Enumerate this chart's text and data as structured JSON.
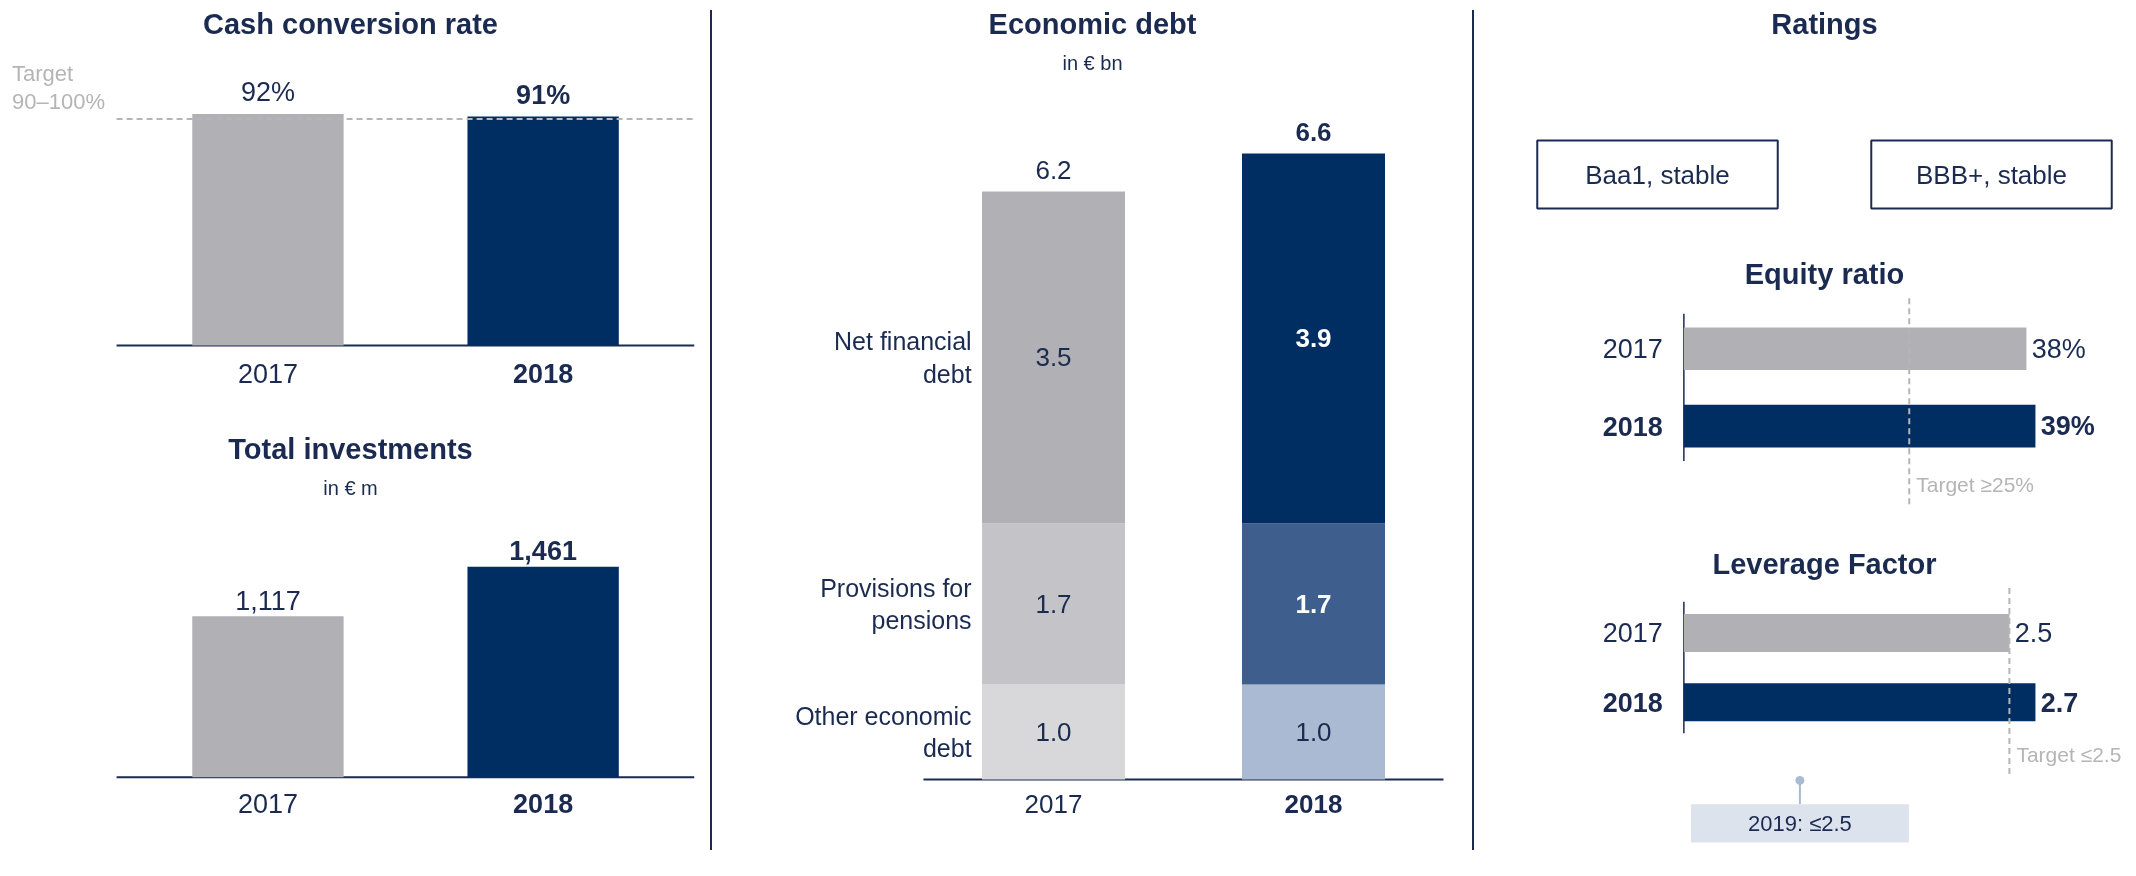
{
  "chart_data": [
    {
      "type": "bar",
      "title": "Cash conversion rate",
      "categories": [
        "2017",
        "2018"
      ],
      "values": [
        92,
        91
      ],
      "colors": [
        "#b1b0b5",
        "#002d62"
      ],
      "value_labels": [
        "92%",
        "91%"
      ],
      "ref_lines": [
        {
          "axis": "y",
          "value": 90,
          "label": "Target 90–100%",
          "color": "#b5b5b5",
          "line_style": "dashed"
        }
      ]
    },
    {
      "type": "bar",
      "title": "Total investments",
      "subtitle": "in € m",
      "categories": [
        "2017",
        "2018"
      ],
      "values": [
        1117,
        1461
      ],
      "colors": [
        "#b1b0b5",
        "#002d62"
      ],
      "value_labels": [
        "1,117",
        "1,461"
      ]
    },
    {
      "type": "bar",
      "title": "Economic debt",
      "subtitle": "in € bn",
      "categories": [
        "2017",
        "2018"
      ],
      "stacked": true,
      "totals": [
        "6.2",
        "6.6"
      ],
      "series": [
        {
          "name": "Other economic debt",
          "colors": [
            "#d8d8da",
            "#aabad3"
          ],
          "values": [
            1.0,
            1.0
          ],
          "value_labels": [
            "1.0",
            "1.0"
          ]
        },
        {
          "name": "Provisions for pensions",
          "colors": [
            "#c4c3c8",
            "#3e5e8e"
          ],
          "values": [
            1.7,
            1.7
          ],
          "value_labels": [
            "1.7",
            "1.7"
          ]
        },
        {
          "name": "Net financial debt",
          "colors": [
            "#b1b0b5",
            "#002d62"
          ],
          "values": [
            3.5,
            3.9
          ],
          "value_labels": [
            "3.5",
            "3.9"
          ]
        }
      ]
    },
    {
      "type": "other",
      "title": "Ratings",
      "annotations": [
        "Baa1, stable",
        "BBB+, stable"
      ]
    },
    {
      "type": "bar",
      "orientation": "horizontal",
      "title": "Equity ratio",
      "categories": [
        "2017",
        "2018"
      ],
      "values": [
        38,
        39
      ],
      "colors": [
        "#b1b0b5",
        "#002d62"
      ],
      "value_labels": [
        "38%",
        "39%"
      ],
      "ref_lines": [
        {
          "axis": "x",
          "value": 25,
          "label": "Target ≥25%",
          "color": "#b5b5b5",
          "line_style": "dashed"
        }
      ]
    },
    {
      "type": "bar",
      "orientation": "horizontal",
      "title": "Leverage Factor",
      "categories": [
        "2017",
        "2018"
      ],
      "values": [
        2.5,
        2.7
      ],
      "colors": [
        "#b1b0b5",
        "#002d62"
      ],
      "data_labels": true,
      "ref_lines": [
        {
          "axis": "x",
          "value": 2.5,
          "label": "Target ≤2.5",
          "color": "#b5b5b5",
          "line_style": "dashed"
        }
      ],
      "annotations": [
        "2019: ≤2.5"
      ]
    }
  ]
}
